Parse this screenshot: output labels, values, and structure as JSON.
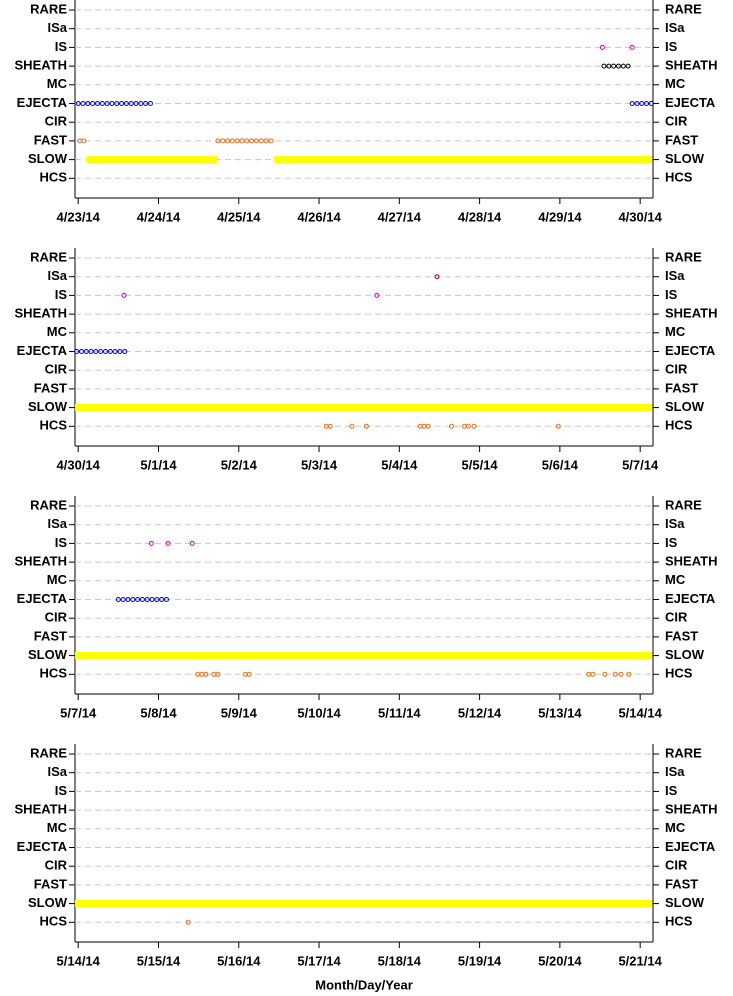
{
  "chart_data": [
    {
      "type": "scatter",
      "xlim": [
        -0.04,
        7.16
      ],
      "xticks": [
        {
          "value": 0,
          "label": "4/23/14"
        },
        {
          "value": 1,
          "label": "4/24/14"
        },
        {
          "value": 2,
          "label": "4/25/14"
        },
        {
          "value": 3,
          "label": "4/26/14"
        },
        {
          "value": 4,
          "label": "4/27/14"
        },
        {
          "value": 5,
          "label": "4/28/14"
        },
        {
          "value": 6,
          "label": "4/29/14"
        },
        {
          "value": 7,
          "label": "4/30/14"
        }
      ],
      "rows": [
        {
          "label": "RARE"
        },
        {
          "label": "ISa"
        },
        {
          "label": "IS",
          "color": "#cc00cc",
          "x": [
            6.53,
            6.9
          ]
        },
        {
          "label": "SHEATH",
          "color": "#000000",
          "x": [
            6.55,
            6.61,
            6.67,
            6.73,
            6.79,
            6.85
          ]
        },
        {
          "label": "MC"
        },
        {
          "label": "EJECTA",
          "color": "#0000cc",
          "x": [
            0,
            0.06,
            0.12,
            0.18,
            0.24,
            0.3,
            0.36,
            0.42,
            0.48,
            0.54,
            0.6,
            0.66,
            0.72,
            0.78,
            0.84,
            0.9,
            6.9,
            6.96,
            7.02,
            7.08,
            7.14
          ]
        },
        {
          "label": "CIR"
        },
        {
          "label": "FAST",
          "color": "#e07020",
          "x": [
            0.02,
            0.07,
            1.74,
            1.8,
            1.86,
            1.92,
            1.98,
            2.04,
            2.1,
            2.16,
            2.22,
            2.28,
            2.34,
            2.4
          ]
        },
        {
          "label": "SLOW",
          "color": "#ffff00",
          "intervals": [
            [
              0.1,
              1.73
            ],
            [
              2.44,
              7.15
            ]
          ]
        },
        {
          "label": "HCS"
        }
      ]
    },
    {
      "type": "scatter",
      "xlim": [
        -0.04,
        7.16
      ],
      "xticks": [
        {
          "value": 0,
          "label": "4/30/14"
        },
        {
          "value": 1,
          "label": "5/1/14"
        },
        {
          "value": 2,
          "label": "5/2/14"
        },
        {
          "value": 3,
          "label": "5/3/14"
        },
        {
          "value": 4,
          "label": "5/4/14"
        },
        {
          "value": 5,
          "label": "5/5/14"
        },
        {
          "value": 6,
          "label": "5/6/14"
        },
        {
          "value": 7,
          "label": "5/7/14"
        }
      ],
      "rows": [
        {
          "label": "RARE"
        },
        {
          "label": "ISa",
          "color": "#aa0000",
          "x": [
            4.47
          ]
        },
        {
          "label": "IS",
          "color": "#cc00cc",
          "x": [
            0.57,
            3.72
          ]
        },
        {
          "label": "SHEATH"
        },
        {
          "label": "MC"
        },
        {
          "label": "EJECTA",
          "color": "#0000cc",
          "x": [
            -0.02,
            0.04,
            0.1,
            0.16,
            0.22,
            0.28,
            0.34,
            0.4,
            0.46,
            0.52,
            0.58
          ]
        },
        {
          "label": "CIR"
        },
        {
          "label": "FAST"
        },
        {
          "label": "SLOW",
          "color": "#ffff00",
          "intervals": [
            [
              -0.04,
              7.15
            ]
          ]
        },
        {
          "label": "HCS",
          "color": "#e07020",
          "x": [
            3.09,
            3.14,
            3.41,
            3.59,
            4.26,
            4.31,
            4.36,
            4.65,
            4.81,
            4.86,
            4.93,
            5.98
          ]
        }
      ]
    },
    {
      "type": "scatter",
      "xlim": [
        -0.04,
        7.16
      ],
      "xticks": [
        {
          "value": 0,
          "label": "5/7/14"
        },
        {
          "value": 1,
          "label": "5/8/14"
        },
        {
          "value": 2,
          "label": "5/9/14"
        },
        {
          "value": 3,
          "label": "5/10/14"
        },
        {
          "value": 4,
          "label": "5/11/14"
        },
        {
          "value": 5,
          "label": "5/12/14"
        },
        {
          "value": 6,
          "label": "5/13/14"
        },
        {
          "value": 7,
          "label": "5/14/14"
        }
      ],
      "rows": [
        {
          "label": "RARE"
        },
        {
          "label": "ISa"
        },
        {
          "label": "IS",
          "color": "#cc00cc",
          "x": [
            0.91,
            1.12,
            1.42
          ]
        },
        {
          "label": "SHEATH"
        },
        {
          "label": "MC"
        },
        {
          "label": "EJECTA",
          "color": "#0000cc",
          "x": [
            0.5,
            0.56,
            0.62,
            0.68,
            0.74,
            0.8,
            0.86,
            0.92,
            0.98,
            1.04,
            1.1
          ]
        },
        {
          "label": "CIR"
        },
        {
          "label": "FAST"
        },
        {
          "label": "SLOW",
          "color": "#ffff00",
          "intervals": [
            [
              -0.04,
              7.15
            ]
          ]
        },
        {
          "label": "HCS",
          "color": "#e07020",
          "x": [
            1.49,
            1.54,
            1.59,
            1.69,
            1.74,
            2.08,
            2.13,
            6.36,
            6.41,
            6.56,
            6.69,
            6.76,
            6.86
          ]
        }
      ]
    },
    {
      "type": "scatter",
      "xlim": [
        -0.04,
        7.16
      ],
      "xlabel": "Month/Day/Year",
      "xticks": [
        {
          "value": 0,
          "label": "5/14/14"
        },
        {
          "value": 1,
          "label": "5/15/14"
        },
        {
          "value": 2,
          "label": "5/16/14"
        },
        {
          "value": 3,
          "label": "5/17/14"
        },
        {
          "value": 4,
          "label": "5/18/14"
        },
        {
          "value": 5,
          "label": "5/19/14"
        },
        {
          "value": 6,
          "label": "5/20/14"
        },
        {
          "value": 7,
          "label": "5/21/14"
        }
      ],
      "rows": [
        {
          "label": "RARE"
        },
        {
          "label": "ISa"
        },
        {
          "label": "IS"
        },
        {
          "label": "SHEATH"
        },
        {
          "label": "MC"
        },
        {
          "label": "EJECTA"
        },
        {
          "label": "CIR"
        },
        {
          "label": "FAST"
        },
        {
          "label": "SLOW",
          "color": "#ffff00",
          "intervals": [
            [
              -0.04,
              7.15
            ]
          ]
        },
        {
          "label": "HCS",
          "color": "#e07020",
          "x": [
            1.37
          ]
        }
      ]
    }
  ]
}
